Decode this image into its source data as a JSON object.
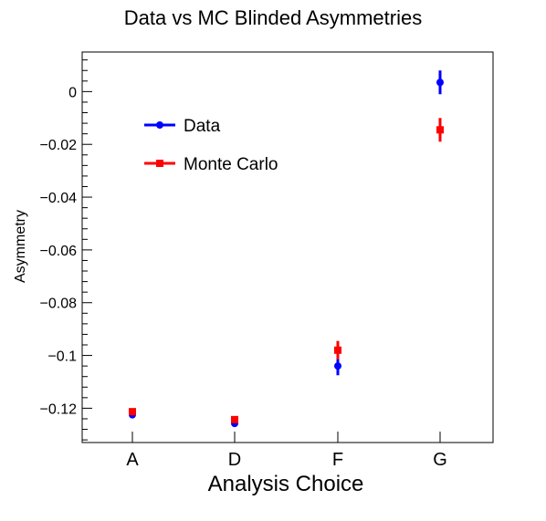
{
  "chart_data": {
    "type": "scatter",
    "title": "Data vs MC Blinded Asymmetries",
    "xlabel": "Analysis Choice",
    "ylabel": "Asymmetry",
    "categories": [
      "A",
      "D",
      "F",
      "G"
    ],
    "ylim": [
      -0.133,
      0.015
    ],
    "yticks": [
      0,
      -0.02,
      -0.04,
      -0.06,
      -0.08,
      -0.1,
      -0.12
    ],
    "ytick_labels": [
      "0",
      "−0.02",
      "−0.04",
      "−0.06",
      "−0.08",
      "−0.1",
      "−0.12"
    ],
    "grid": false,
    "legend_position": "upper-left",
    "series": [
      {
        "name": "Data",
        "color": "#0000ff",
        "marker": "circle",
        "values": [
          -0.1225,
          -0.1258,
          -0.104,
          0.0035
        ],
        "errors": [
          0.0008,
          0.001,
          0.0035,
          0.0045
        ]
      },
      {
        "name": "Monte Carlo",
        "color": "#ff0000",
        "marker": "square",
        "values": [
          -0.1213,
          -0.1243,
          -0.098,
          -0.0145
        ],
        "errors": [
          0.0006,
          0.0008,
          0.0035,
          0.0045
        ]
      }
    ]
  }
}
